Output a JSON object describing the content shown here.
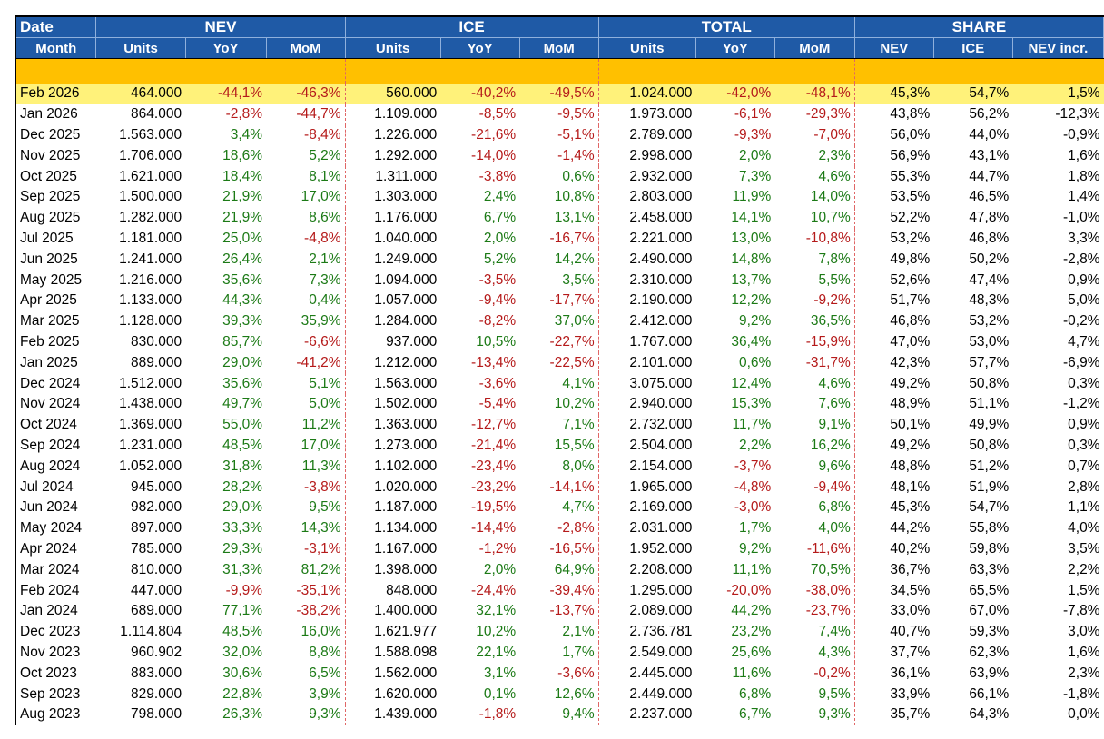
{
  "header": {
    "groups": [
      "Date",
      "NEV",
      "ICE",
      "TOTAL",
      "SHARE"
    ],
    "columns": [
      "Month",
      "Units",
      "YoY",
      "MoM",
      "Units",
      "YoY",
      "MoM",
      "Units",
      "YoY",
      "MoM",
      "NEV",
      "ICE",
      "NEV incr."
    ]
  },
  "rows": [
    {
      "m": "Feb 2026",
      "v": [
        "464.000",
        "-44,1%",
        "-46,3%",
        "560.000",
        "-40,2%",
        "-49,5%",
        "1.024.000",
        "-42,0%",
        "-48,1%",
        "45,3%",
        "54,7%",
        "1,5%"
      ]
    },
    {
      "m": "Jan 2026",
      "v": [
        "864.000",
        "-2,8%",
        "-44,7%",
        "1.109.000",
        "-8,5%",
        "-9,5%",
        "1.973.000",
        "-6,1%",
        "-29,3%",
        "43,8%",
        "56,2%",
        "-12,3%"
      ]
    },
    {
      "m": "Dec 2025",
      "v": [
        "1.563.000",
        "3,4%",
        "-8,4%",
        "1.226.000",
        "-21,6%",
        "-5,1%",
        "2.789.000",
        "-9,3%",
        "-7,0%",
        "56,0%",
        "44,0%",
        "-0,9%"
      ]
    },
    {
      "m": "Nov 2025",
      "v": [
        "1.706.000",
        "18,6%",
        "5,2%",
        "1.292.000",
        "-14,0%",
        "-1,4%",
        "2.998.000",
        "2,0%",
        "2,3%",
        "56,9%",
        "43,1%",
        "1,6%"
      ]
    },
    {
      "m": "Oct 2025",
      "v": [
        "1.621.000",
        "18,4%",
        "8,1%",
        "1.311.000",
        "-3,8%",
        "0,6%",
        "2.932.000",
        "7,3%",
        "4,6%",
        "55,3%",
        "44,7%",
        "1,8%"
      ]
    },
    {
      "m": "Sep 2025",
      "v": [
        "1.500.000",
        "21,9%",
        "17,0%",
        "1.303.000",
        "2,4%",
        "10,8%",
        "2.803.000",
        "11,9%",
        "14,0%",
        "53,5%",
        "46,5%",
        "1,4%"
      ]
    },
    {
      "m": "Aug 2025",
      "v": [
        "1.282.000",
        "21,9%",
        "8,6%",
        "1.176.000",
        "6,7%",
        "13,1%",
        "2.458.000",
        "14,1%",
        "10,7%",
        "52,2%",
        "47,8%",
        "-1,0%"
      ]
    },
    {
      "m": "Jul 2025",
      "v": [
        "1.181.000",
        "25,0%",
        "-4,8%",
        "1.040.000",
        "2,0%",
        "-16,7%",
        "2.221.000",
        "13,0%",
        "-10,8%",
        "53,2%",
        "46,8%",
        "3,3%"
      ]
    },
    {
      "m": "Jun 2025",
      "v": [
        "1.241.000",
        "26,4%",
        "2,1%",
        "1.249.000",
        "5,2%",
        "14,2%",
        "2.490.000",
        "14,8%",
        "7,8%",
        "49,8%",
        "50,2%",
        "-2,8%"
      ]
    },
    {
      "m": "May 2025",
      "v": [
        "1.216.000",
        "35,6%",
        "7,3%",
        "1.094.000",
        "-3,5%",
        "3,5%",
        "2.310.000",
        "13,7%",
        "5,5%",
        "52,6%",
        "47,4%",
        "0,9%"
      ]
    },
    {
      "m": "Apr 2025",
      "v": [
        "1.133.000",
        "44,3%",
        "0,4%",
        "1.057.000",
        "-9,4%",
        "-17,7%",
        "2.190.000",
        "12,2%",
        "-9,2%",
        "51,7%",
        "48,3%",
        "5,0%"
      ]
    },
    {
      "m": "Mar 2025",
      "v": [
        "1.128.000",
        "39,3%",
        "35,9%",
        "1.284.000",
        "-8,2%",
        "37,0%",
        "2.412.000",
        "9,2%",
        "36,5%",
        "46,8%",
        "53,2%",
        "-0,2%"
      ]
    },
    {
      "m": "Feb 2025",
      "v": [
        "830.000",
        "85,7%",
        "-6,6%",
        "937.000",
        "10,5%",
        "-22,7%",
        "1.767.000",
        "36,4%",
        "-15,9%",
        "47,0%",
        "53,0%",
        "4,7%"
      ]
    },
    {
      "m": "Jan 2025",
      "v": [
        "889.000",
        "29,0%",
        "-41,2%",
        "1.212.000",
        "-13,4%",
        "-22,5%",
        "2.101.000",
        "0,6%",
        "-31,7%",
        "42,3%",
        "57,7%",
        "-6,9%"
      ]
    },
    {
      "m": "Dec 2024",
      "v": [
        "1.512.000",
        "35,6%",
        "5,1%",
        "1.563.000",
        "-3,6%",
        "4,1%",
        "3.075.000",
        "12,4%",
        "4,6%",
        "49,2%",
        "50,8%",
        "0,3%"
      ]
    },
    {
      "m": "Nov 2024",
      "v": [
        "1.438.000",
        "49,7%",
        "5,0%",
        "1.502.000",
        "-5,4%",
        "10,2%",
        "2.940.000",
        "15,3%",
        "7,6%",
        "48,9%",
        "51,1%",
        "-1,2%"
      ]
    },
    {
      "m": "Oct 2024",
      "v": [
        "1.369.000",
        "55,0%",
        "11,2%",
        "1.363.000",
        "-12,7%",
        "7,1%",
        "2.732.000",
        "11,7%",
        "9,1%",
        "50,1%",
        "49,9%",
        "0,9%"
      ]
    },
    {
      "m": "Sep 2024",
      "v": [
        "1.231.000",
        "48,5%",
        "17,0%",
        "1.273.000",
        "-21,4%",
        "15,5%",
        "2.504.000",
        "2,2%",
        "16,2%",
        "49,2%",
        "50,8%",
        "0,3%"
      ]
    },
    {
      "m": "Aug 2024",
      "v": [
        "1.052.000",
        "31,8%",
        "11,3%",
        "1.102.000",
        "-23,4%",
        "8,0%",
        "2.154.000",
        "-3,7%",
        "9,6%",
        "48,8%",
        "51,2%",
        "0,7%"
      ]
    },
    {
      "m": "Jul 2024",
      "v": [
        "945.000",
        "28,2%",
        "-3,8%",
        "1.020.000",
        "-23,2%",
        "-14,1%",
        "1.965.000",
        "-4,8%",
        "-9,4%",
        "48,1%",
        "51,9%",
        "2,8%"
      ]
    },
    {
      "m": "Jun 2024",
      "v": [
        "982.000",
        "29,0%",
        "9,5%",
        "1.187.000",
        "-19,5%",
        "4,7%",
        "2.169.000",
        "-3,0%",
        "6,8%",
        "45,3%",
        "54,7%",
        "1,1%"
      ]
    },
    {
      "m": "May 2024",
      "v": [
        "897.000",
        "33,3%",
        "14,3%",
        "1.134.000",
        "-14,4%",
        "-2,8%",
        "2.031.000",
        "1,7%",
        "4,0%",
        "44,2%",
        "55,8%",
        "4,0%"
      ]
    },
    {
      "m": "Apr 2024",
      "v": [
        "785.000",
        "29,3%",
        "-3,1%",
        "1.167.000",
        "-1,2%",
        "-16,5%",
        "1.952.000",
        "9,2%",
        "-11,6%",
        "40,2%",
        "59,8%",
        "3,5%"
      ]
    },
    {
      "m": "Mar 2024",
      "v": [
        "810.000",
        "31,3%",
        "81,2%",
        "1.398.000",
        "2,0%",
        "64,9%",
        "2.208.000",
        "11,1%",
        "70,5%",
        "36,7%",
        "63,3%",
        "2,2%"
      ]
    },
    {
      "m": "Feb 2024",
      "v": [
        "447.000",
        "-9,9%",
        "-35,1%",
        "848.000",
        "-24,4%",
        "-39,4%",
        "1.295.000",
        "-20,0%",
        "-38,0%",
        "34,5%",
        "65,5%",
        "1,5%"
      ]
    },
    {
      "m": "Jan 2024",
      "v": [
        "689.000",
        "77,1%",
        "-38,2%",
        "1.400.000",
        "32,1%",
        "-13,7%",
        "2.089.000",
        "44,2%",
        "-23,7%",
        "33,0%",
        "67,0%",
        "-7,8%"
      ]
    },
    {
      "m": "Dec 2023",
      "v": [
        "1.114.804",
        "48,5%",
        "16,0%",
        "1.621.977",
        "10,2%",
        "2,1%",
        "2.736.781",
        "23,2%",
        "7,4%",
        "40,7%",
        "59,3%",
        "3,0%"
      ]
    },
    {
      "m": "Nov 2023",
      "v": [
        "960.902",
        "32,0%",
        "8,8%",
        "1.588.098",
        "22,1%",
        "1,7%",
        "2.549.000",
        "25,6%",
        "4,3%",
        "37,7%",
        "62,3%",
        "1,6%"
      ]
    },
    {
      "m": "Oct 2023",
      "v": [
        "883.000",
        "30,6%",
        "6,5%",
        "1.562.000",
        "3,1%",
        "-3,6%",
        "2.445.000",
        "11,6%",
        "-0,2%",
        "36,1%",
        "63,9%",
        "2,3%"
      ]
    },
    {
      "m": "Sep 2023",
      "v": [
        "829.000",
        "22,8%",
        "3,9%",
        "1.620.000",
        "0,1%",
        "12,6%",
        "2.449.000",
        "6,8%",
        "9,5%",
        "33,9%",
        "66,1%",
        "-1,8%"
      ]
    },
    {
      "m": "Aug 2023",
      "v": [
        "798.000",
        "26,3%",
        "9,3%",
        "1.439.000",
        "-1,8%",
        "9,4%",
        "2.237.000",
        "6,7%",
        "9,3%",
        "35,7%",
        "64,3%",
        "0,0%"
      ]
    }
  ]
}
